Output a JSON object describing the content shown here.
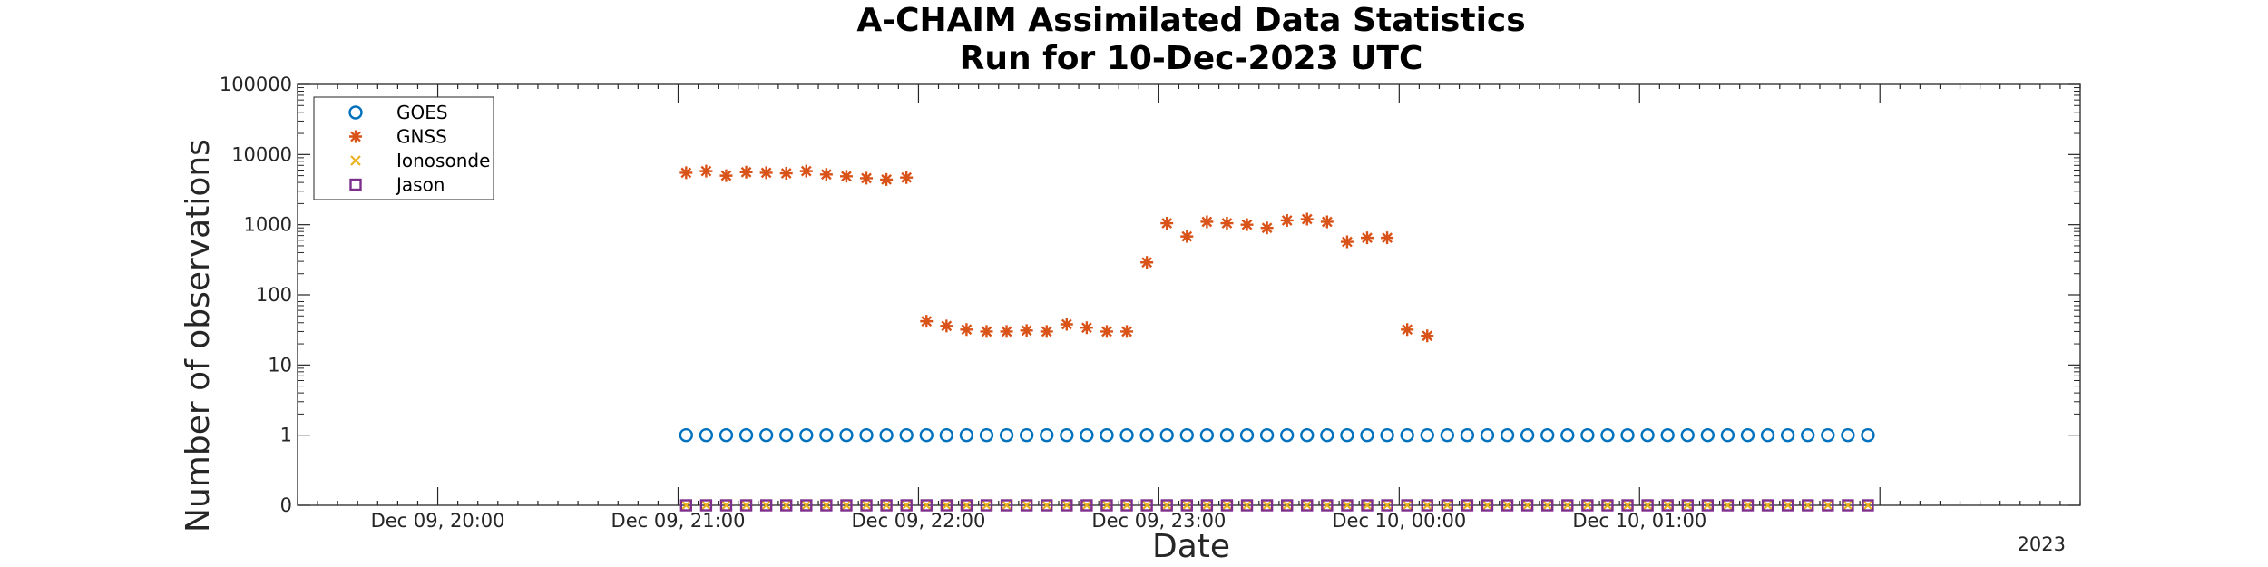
{
  "chart_data": {
    "type": "scatter",
    "title": "A-CHAIM Assimilated Data Statistics",
    "subtitle": "Run for 10-Dec-2023 UTC",
    "xlabel": "Date",
    "ylabel": "Number of observations",
    "x_scale": "time",
    "x_range_minutes": [
      -275,
      170
    ],
    "x_epoch_label": "2023",
    "x_ticks": [
      {
        "minute": -240,
        "label": "Dec 09, 20:00"
      },
      {
        "minute": -180,
        "label": "Dec 09, 21:00"
      },
      {
        "minute": -120,
        "label": "Dec 09, 22:00"
      },
      {
        "minute": -60,
        "label": "Dec 09, 23:00"
      },
      {
        "minute": 0,
        "label": "Dec 10, 00:00"
      },
      {
        "minute": 60,
        "label": "Dec 10, 01:00"
      }
    ],
    "y_scale": "log",
    "y_ticks": [
      {
        "value": 0,
        "label": "0"
      },
      {
        "value": 1,
        "label": "1"
      },
      {
        "value": 10,
        "label": "10"
      },
      {
        "value": 100,
        "label": "100"
      },
      {
        "value": 1000,
        "label": "1000"
      },
      {
        "value": 10000,
        "label": "10000"
      },
      {
        "value": 100000,
        "label": "100000"
      }
    ],
    "legend_position": "top-left",
    "grid": false,
    "series": [
      {
        "name": "GOES",
        "marker": "circle",
        "color": "#0072BD",
        "x_start_minute": -178,
        "x_step_minutes": 5,
        "count": 60,
        "constant_value": 1
      },
      {
        "name": "GNSS",
        "marker": "asterisk",
        "color": "#D95319",
        "points": [
          [
            -178,
            5500
          ],
          [
            -173,
            5800
          ],
          [
            -168,
            5000
          ],
          [
            -163,
            5600
          ],
          [
            -158,
            5500
          ],
          [
            -153,
            5400
          ],
          [
            -148,
            5800
          ],
          [
            -143,
            5200
          ],
          [
            -138,
            4900
          ],
          [
            -133,
            4600
          ],
          [
            -128,
            4400
          ],
          [
            -123,
            4700
          ],
          [
            -118,
            42
          ],
          [
            -113,
            36
          ],
          [
            -108,
            32
          ],
          [
            -103,
            30
          ],
          [
            -98,
            30
          ],
          [
            -93,
            31
          ],
          [
            -88,
            30
          ],
          [
            -83,
            38
          ],
          [
            -78,
            34
          ],
          [
            -73,
            30
          ],
          [
            -68,
            30
          ],
          [
            -63,
            290
          ],
          [
            -58,
            1050
          ],
          [
            -53,
            680
          ],
          [
            -48,
            1100
          ],
          [
            -43,
            1050
          ],
          [
            -38,
            1000
          ],
          [
            -33,
            900
          ],
          [
            -28,
            1150
          ],
          [
            -23,
            1200
          ],
          [
            -18,
            1100
          ],
          [
            -13,
            570
          ],
          [
            -8,
            650
          ],
          [
            -3,
            650
          ],
          [
            2,
            32
          ],
          [
            7,
            26
          ]
        ]
      },
      {
        "name": "Ionosonde",
        "marker": "x",
        "color": "#EDB120",
        "x_start_minute": -178,
        "x_step_minutes": 5,
        "count": 60,
        "constant_value": 0
      },
      {
        "name": "Jason",
        "marker": "square",
        "color": "#7E2F8E",
        "x_start_minute": -178,
        "x_step_minutes": 5,
        "count": 60,
        "constant_value": 0
      }
    ]
  }
}
